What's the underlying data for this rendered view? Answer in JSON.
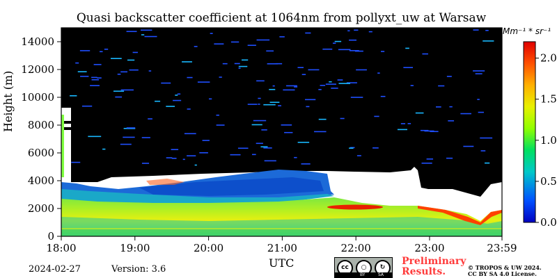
{
  "chart_data": {
    "type": "heatmap",
    "title": "Quasi backscatter coefficient at 1064nm from pollyxt_uw at Warsaw",
    "xlabel": "UTC",
    "ylabel": "Height (m)",
    "x_tick_labels": [
      "18:00",
      "19:00",
      "20:00",
      "21:00",
      "22:00",
      "23:00",
      "23:59"
    ],
    "y_ticks": [
      0,
      2000,
      4000,
      6000,
      8000,
      10000,
      12000,
      14000
    ],
    "y_tick_labels": [
      "0",
      "2000",
      "4000",
      "6000",
      "8000",
      "10000",
      "12000",
      "14000"
    ],
    "ylim": [
      0,
      15000
    ],
    "colorbar": {
      "label": "Mm⁻¹ * sr⁻¹",
      "range": [
        0.0,
        2.2
      ],
      "ticks": [
        0.0,
        0.5,
        1.0,
        1.5,
        2.0
      ],
      "tick_labels": [
        "0.0",
        "0.5",
        "1.0",
        "1.5",
        "2.0"
      ],
      "colormap": "jet"
    },
    "layers": [
      {
        "name": "boundary-layer",
        "top_height_m": [
          2800,
          2700,
          2600,
          2500,
          2400,
          2300,
          2200,
          2200,
          2000,
          1900,
          1700,
          1100
        ],
        "value_range": [
          0.6,
          1.3
        ]
      },
      {
        "name": "aerosol-layer",
        "height_range_m": [
          2800,
          4700
        ],
        "value_range": [
          0.1,
          0.5
        ]
      },
      {
        "name": "elevated-high-backscatter",
        "time": "21:50",
        "height_m": 2000,
        "value": 2.0
      }
    ],
    "colors": {
      "no_signal": "#000000",
      "missing": "#ffffff"
    }
  },
  "footer": {
    "date": "2024-02-27",
    "version": "Version: 3.6",
    "preliminary": [
      "Preliminary",
      "Results."
    ],
    "license_lines": [
      "© TROPOS & UW 2024.",
      "CC BY SA 4.0 License."
    ],
    "cc_badge": {
      "icon": "cc-by-sa-icon",
      "cc": "cc",
      "by": "BY",
      "sa": "SA"
    }
  }
}
